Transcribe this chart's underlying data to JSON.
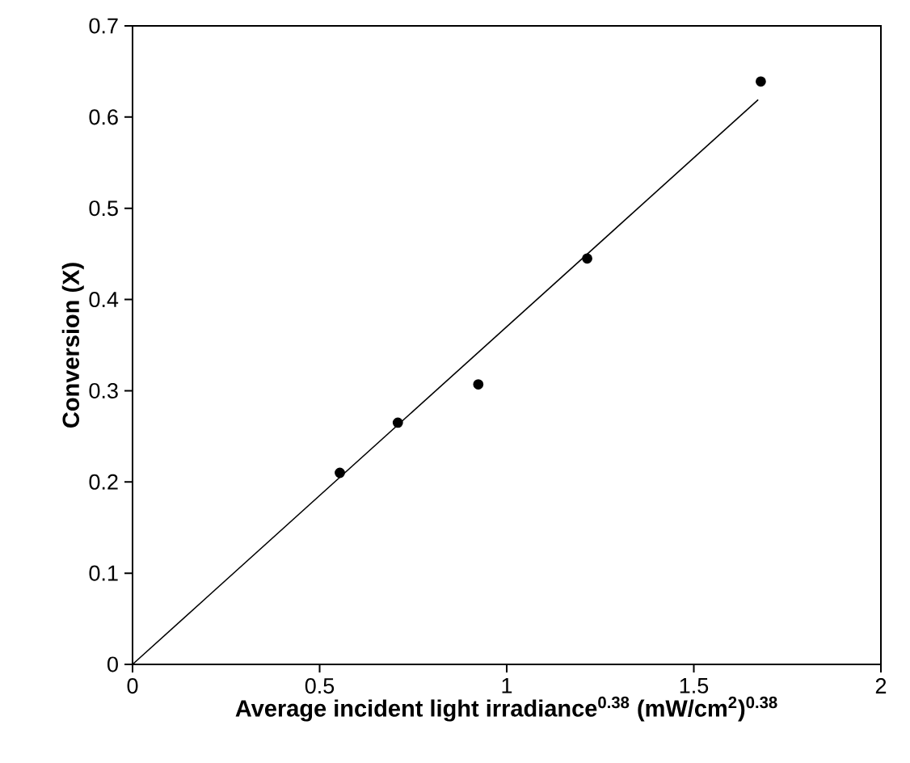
{
  "chart_data": {
    "type": "scatter",
    "xlabel": "Average incident light irradiance$^{0.38}$ (mW/cm$^{2}$)$^{0.38}$",
    "ylabel": "Conversion (X)",
    "xlim": [
      0,
      2
    ],
    "ylim": [
      0,
      0.7
    ],
    "xticks": [
      0,
      0.5,
      1,
      1.5,
      2
    ],
    "yticks": [
      0,
      0.1,
      0.2,
      0.3,
      0.4,
      0.5,
      0.6,
      0.7
    ],
    "grid": false,
    "marker": "circle",
    "series": [
      {
        "color": "#000000",
        "x": [
          0.554,
          0.709,
          0.924,
          1.215,
          1.679
        ],
        "values": [
          0.21,
          0.265,
          0.307,
          0.445,
          0.639
        ]
      },
      {
        "type": "line",
        "marker": "none",
        "line_style": "solid",
        "color": "#000000",
        "x": [
          0,
          1.672
        ],
        "values": [
          0,
          0.619
        ]
      }
    ]
  }
}
